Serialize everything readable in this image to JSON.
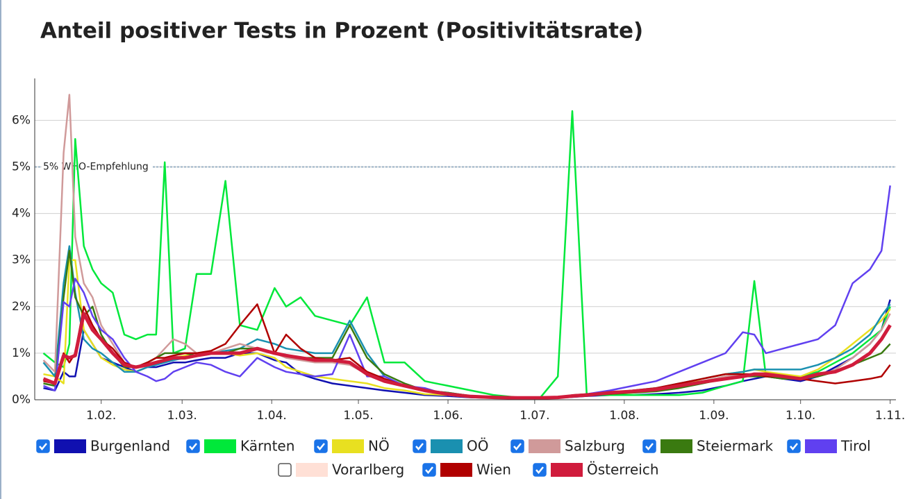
{
  "chart_data": {
    "type": "line",
    "title": "Anteil positiver Tests in Prozent (Positivitätsrate)",
    "x": [
      12,
      16,
      19,
      21,
      23,
      26,
      29,
      32,
      36,
      40,
      44,
      48,
      51,
      54,
      57,
      61,
      65,
      70,
      75,
      80,
      86,
      92,
      96,
      101,
      106,
      112,
      118,
      124,
      130,
      137,
      144,
      152,
      160,
      168,
      176,
      184,
      190,
      195,
      200,
      208,
      216,
      224,
      232,
      240,
      248,
      254,
      258,
      262,
      268,
      274,
      280,
      286,
      292,
      298,
      302,
      305
    ],
    "xlim": [
      9,
      307
    ],
    "xticks": [
      {
        "value": 32,
        "label": "1.02."
      },
      {
        "value": 60,
        "label": "1.03."
      },
      {
        "value": 91,
        "label": "1.04."
      },
      {
        "value": 121,
        "label": "1.05."
      },
      {
        "value": 152,
        "label": "1.06."
      },
      {
        "value": 182,
        "label": "1.07."
      },
      {
        "value": 213,
        "label": "1.08."
      },
      {
        "value": 244,
        "label": "1.09."
      },
      {
        "value": 274,
        "label": "1.10."
      },
      {
        "value": 305,
        "label": "1.11."
      }
    ],
    "ylim": [
      0,
      6.9
    ],
    "yticks": [
      {
        "value": 0,
        "label": "0%"
      },
      {
        "value": 1,
        "label": "1%"
      },
      {
        "value": 2,
        "label": "2%"
      },
      {
        "value": 3,
        "label": "3%"
      },
      {
        "value": 4,
        "label": "4%"
      },
      {
        "value": 5,
        "label": "5%"
      },
      {
        "value": 6,
        "label": "6%"
      }
    ],
    "grid": true,
    "reference_line": {
      "value": 5,
      "label": "5% WHO-Empfehlung"
    },
    "series": [
      {
        "name": "Burgenland",
        "color": "#1010b0",
        "visible": true,
        "values": [
          0.25,
          0.2,
          0.6,
          0.5,
          0.5,
          1.5,
          1.2,
          0.9,
          0.8,
          0.7,
          0.6,
          0.7,
          0.7,
          0.75,
          0.8,
          0.8,
          0.85,
          0.9,
          0.9,
          1.0,
          1.0,
          0.85,
          0.8,
          0.55,
          0.45,
          0.35,
          0.3,
          0.25,
          0.2,
          0.15,
          0.1,
          0.08,
          0.05,
          0.04,
          0.03,
          0.03,
          0.04,
          0.06,
          0.08,
          0.1,
          0.1,
          0.12,
          0.15,
          0.2,
          0.3,
          0.4,
          0.45,
          0.5,
          0.45,
          0.4,
          0.5,
          0.7,
          0.9,
          1.2,
          1.5,
          2.15
        ]
      },
      {
        "name": "Kärnten",
        "color": "#00e83a",
        "visible": true,
        "values": [
          1.0,
          0.8,
          0.7,
          1.2,
          5.6,
          3.3,
          2.8,
          2.5,
          2.3,
          1.4,
          1.3,
          1.4,
          1.4,
          5.1,
          1.0,
          1.1,
          2.7,
          2.7,
          4.7,
          1.6,
          1.5,
          2.4,
          2.0,
          2.2,
          1.8,
          1.7,
          1.6,
          2.2,
          0.8,
          0.8,
          0.4,
          0.3,
          0.2,
          0.1,
          0.05,
          0.05,
          0.5,
          6.2,
          0.1,
          0.1,
          0.1,
          0.1,
          0.1,
          0.15,
          0.3,
          0.4,
          2.55,
          0.5,
          0.5,
          0.5,
          0.6,
          0.8,
          1.0,
          1.3,
          1.5,
          2.0
        ]
      },
      {
        "name": "NÖ",
        "color": "#e8e020",
        "visible": true,
        "values": [
          0.55,
          0.5,
          0.35,
          3.0,
          3.0,
          1.5,
          1.2,
          0.9,
          0.75,
          0.65,
          0.6,
          0.7,
          0.8,
          0.85,
          0.9,
          0.95,
          0.95,
          1.0,
          1.0,
          0.95,
          1.0,
          0.9,
          0.7,
          0.6,
          0.5,
          0.45,
          0.4,
          0.35,
          0.25,
          0.2,
          0.12,
          0.1,
          0.06,
          0.05,
          0.04,
          0.04,
          0.05,
          0.08,
          0.1,
          0.12,
          0.15,
          0.2,
          0.3,
          0.45,
          0.55,
          0.6,
          0.65,
          0.6,
          0.55,
          0.5,
          0.65,
          0.9,
          1.2,
          1.5,
          1.7,
          1.95
        ]
      },
      {
        "name": "OÖ",
        "color": "#1a90b0",
        "visible": true,
        "values": [
          0.8,
          0.5,
          2.5,
          3.3,
          2.3,
          1.3,
          1.1,
          1.0,
          0.8,
          0.6,
          0.6,
          0.7,
          0.75,
          0.8,
          0.85,
          0.9,
          0.95,
          1.0,
          1.05,
          1.1,
          1.3,
          1.2,
          1.1,
          1.05,
          1.0,
          1.0,
          1.7,
          1.0,
          0.5,
          0.3,
          0.2,
          0.15,
          0.08,
          0.05,
          0.04,
          0.04,
          0.05,
          0.08,
          0.1,
          0.15,
          0.2,
          0.25,
          0.35,
          0.45,
          0.55,
          0.6,
          0.65,
          0.65,
          0.65,
          0.65,
          0.75,
          0.9,
          1.1,
          1.4,
          1.8,
          2.05
        ]
      },
      {
        "name": "Salzburg",
        "color": "#d09a9a",
        "visible": true,
        "values": [
          0.85,
          0.6,
          5.3,
          6.55,
          3.5,
          2.5,
          2.2,
          1.6,
          1.2,
          0.8,
          0.7,
          0.8,
          0.9,
          1.1,
          1.3,
          1.2,
          1.0,
          1.0,
          1.1,
          1.2,
          1.1,
          1.0,
          0.9,
          0.85,
          0.8,
          0.8,
          0.75,
          0.55,
          0.4,
          0.3,
          0.2,
          0.12,
          0.07,
          0.05,
          0.04,
          0.04,
          0.05,
          0.08,
          0.1,
          0.15,
          0.2,
          0.25,
          0.3,
          0.4,
          0.5,
          0.55,
          0.55,
          0.5,
          0.5,
          0.45,
          0.5,
          0.65,
          0.9,
          1.2,
          1.5,
          1.85
        ]
      },
      {
        "name": "Steiermark",
        "color": "#3a7a10",
        "visible": true,
        "values": [
          0.35,
          0.3,
          2.2,
          3.2,
          2.2,
          1.8,
          2.0,
          1.4,
          1.0,
          0.7,
          0.7,
          0.8,
          0.9,
          1.0,
          1.0,
          1.0,
          0.95,
          1.0,
          1.0,
          1.1,
          1.1,
          1.0,
          0.95,
          0.9,
          0.9,
          0.9,
          1.6,
          0.9,
          0.55,
          0.35,
          0.2,
          0.15,
          0.08,
          0.05,
          0.04,
          0.04,
          0.05,
          0.08,
          0.1,
          0.12,
          0.15,
          0.18,
          0.25,
          0.35,
          0.45,
          0.5,
          0.5,
          0.5,
          0.45,
          0.45,
          0.5,
          0.6,
          0.75,
          0.9,
          1.0,
          1.2
        ]
      },
      {
        "name": "Tirol",
        "color": "#6040f0",
        "visible": true,
        "values": [
          0.3,
          0.2,
          2.1,
          2.0,
          2.6,
          2.3,
          1.8,
          1.5,
          1.3,
          0.9,
          0.6,
          0.5,
          0.4,
          0.45,
          0.6,
          0.7,
          0.8,
          0.75,
          0.6,
          0.5,
          0.9,
          0.7,
          0.6,
          0.55,
          0.5,
          0.55,
          1.4,
          0.5,
          0.5,
          0.3,
          0.25,
          0.1,
          0.06,
          0.05,
          0.04,
          0.04,
          0.05,
          0.08,
          0.12,
          0.2,
          0.3,
          0.4,
          0.6,
          0.8,
          1.0,
          1.45,
          1.4,
          1.0,
          1.1,
          1.2,
          1.3,
          1.6,
          2.5,
          2.8,
          3.2,
          4.6
        ]
      },
      {
        "name": "Vorarlberg",
        "color": "#ffe0d6",
        "visible": false
      },
      {
        "name": "Wien",
        "color": "#b00000",
        "visible": true,
        "values": [
          0.4,
          0.35,
          1.0,
          0.8,
          1.0,
          2.0,
          1.6,
          1.3,
          1.1,
          0.8,
          0.7,
          0.8,
          0.9,
          0.9,
          0.95,
          1.0,
          1.0,
          1.05,
          1.2,
          1.6,
          2.05,
          1.0,
          1.4,
          1.1,
          0.9,
          0.85,
          0.9,
          0.6,
          0.45,
          0.3,
          0.2,
          0.13,
          0.08,
          0.05,
          0.04,
          0.04,
          0.05,
          0.1,
          0.12,
          0.15,
          0.2,
          0.25,
          0.35,
          0.45,
          0.55,
          0.55,
          0.55,
          0.5,
          0.5,
          0.45,
          0.4,
          0.35,
          0.4,
          0.45,
          0.5,
          0.75
        ]
      },
      {
        "name": "Österreich",
        "color": "#d01c3c",
        "visible": true,
        "values": [
          0.45,
          0.35,
          0.95,
          0.9,
          0.95,
          1.85,
          1.5,
          1.3,
          1.0,
          0.75,
          0.7,
          0.75,
          0.8,
          0.85,
          0.9,
          0.9,
          0.95,
          1.0,
          1.0,
          1.0,
          1.1,
          1.0,
          0.95,
          0.9,
          0.85,
          0.85,
          0.8,
          0.55,
          0.4,
          0.3,
          0.2,
          0.12,
          0.07,
          0.05,
          0.04,
          0.04,
          0.05,
          0.08,
          0.1,
          0.15,
          0.18,
          0.22,
          0.3,
          0.38,
          0.45,
          0.5,
          0.55,
          0.55,
          0.5,
          0.45,
          0.55,
          0.6,
          0.75,
          1.0,
          1.3,
          1.6
        ]
      }
    ]
  }
}
